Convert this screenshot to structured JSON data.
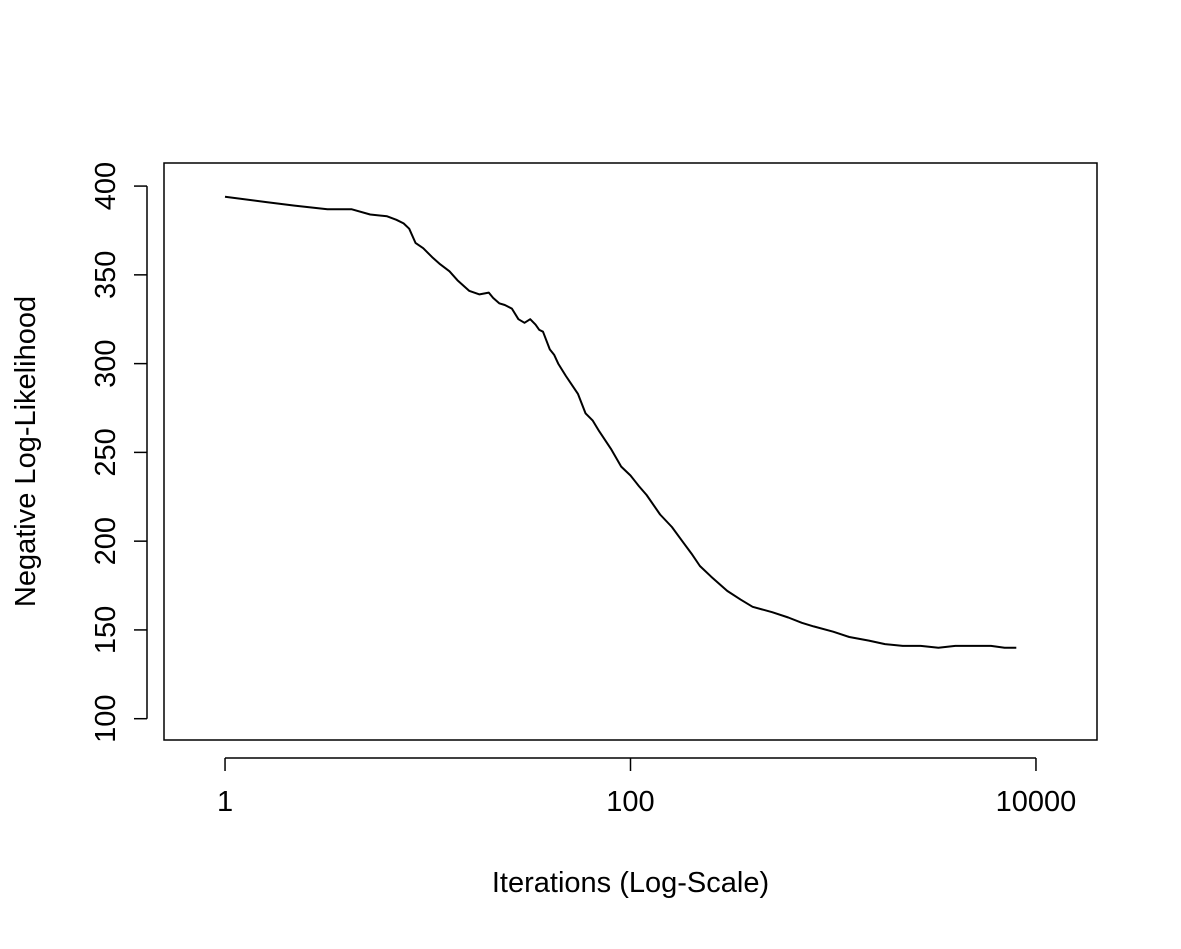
{
  "chart_data": {
    "type": "line",
    "title": "",
    "xlabel": "Iterations (Log-Scale)",
    "ylabel": "Negative Log-Likelihood",
    "x_scale": "log",
    "xlim": [
      0.5,
      20000
    ],
    "ylim": [
      88,
      413
    ],
    "x_ticks": [
      1,
      100,
      10000
    ],
    "x_tick_labels": [
      "1",
      "100",
      "10000"
    ],
    "y_ticks": [
      100,
      150,
      200,
      250,
      300,
      350,
      400
    ],
    "y_tick_labels": [
      "100",
      "150",
      "200",
      "250",
      "300",
      "350",
      "400"
    ],
    "grid": false,
    "legend": "none",
    "line_color": "#000000",
    "series": [
      {
        "x": [
          1,
          1.6,
          2.2,
          3.2,
          4.2,
          5.2,
          6.3,
          7.0,
          7.6,
          8.1,
          8.7,
          9.5,
          10.5,
          11.5,
          12.8,
          14.0,
          16.0,
          18.0,
          20.0,
          21.0,
          22.5,
          24.0,
          26.0,
          28.0,
          30.0,
          32.0,
          34.0,
          35.5,
          37.0,
          40.0,
          42.0,
          44.0,
          48.0,
          55.0,
          60.0,
          65.0,
          70.0,
          80.0,
          90.0,
          100.0,
          110.0,
          120.0,
          140.0,
          160.0,
          180.0,
          200.0,
          220.0,
          250.0,
          300.0,
          350.0,
          400.0,
          500.0,
          600.0,
          700.0,
          800.0,
          1000.0,
          1200.0,
          1500.0,
          1800.0,
          2200.0,
          2700.0,
          3300.0,
          4000.0,
          5000.0,
          6000.0,
          7000.0,
          8000.0
        ],
        "y": [
          394,
          391,
          389,
          387,
          387,
          384,
          383,
          381,
          379,
          376,
          368,
          365,
          360,
          356,
          352,
          347,
          341,
          339,
          340,
          337,
          334,
          333,
          331,
          325,
          323,
          325,
          322,
          319,
          318,
          308,
          305,
          300,
          293,
          283,
          272,
          268,
          262,
          252,
          242,
          237,
          231,
          226,
          215,
          208,
          200,
          193,
          186,
          180,
          172,
          167,
          163,
          160,
          157,
          154,
          152,
          149,
          146,
          144,
          142,
          141,
          141,
          140,
          141,
          141,
          141,
          140,
          140
        ]
      }
    ]
  }
}
